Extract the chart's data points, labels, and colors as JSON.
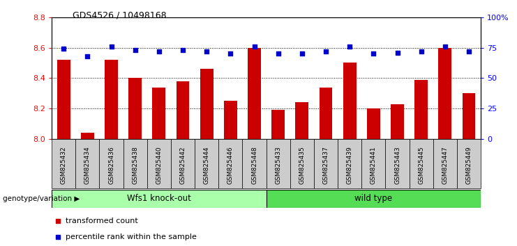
{
  "title": "GDS4526 / 10498168",
  "categories": [
    "GSM825432",
    "GSM825434",
    "GSM825436",
    "GSM825438",
    "GSM825440",
    "GSM825442",
    "GSM825444",
    "GSM825446",
    "GSM825448",
    "GSM825433",
    "GSM825435",
    "GSM825437",
    "GSM825439",
    "GSM825441",
    "GSM825443",
    "GSM825445",
    "GSM825447",
    "GSM825449"
  ],
  "bar_values": [
    8.52,
    8.04,
    8.52,
    8.4,
    8.34,
    8.38,
    8.46,
    8.25,
    8.6,
    8.19,
    8.24,
    8.34,
    8.5,
    8.2,
    8.23,
    8.39,
    8.6,
    8.3
  ],
  "dot_values": [
    74,
    68,
    76,
    73,
    72,
    73,
    72,
    70,
    76,
    70,
    70,
    72,
    76,
    70,
    71,
    72,
    76,
    72
  ],
  "ylim": [
    8.0,
    8.8
  ],
  "y2lim": [
    0,
    100
  ],
  "yticks": [
    8.0,
    8.2,
    8.4,
    8.6,
    8.8
  ],
  "y2ticks": [
    0,
    25,
    50,
    75,
    100
  ],
  "y2ticklabels": [
    "0",
    "25",
    "50",
    "75",
    "100%"
  ],
  "bar_color": "#cc0000",
  "dot_color": "#0000cc",
  "group1_label": "Wfs1 knock-out",
  "group2_label": "wild type",
  "group1_color": "#aaffaa",
  "group2_color": "#55dd55",
  "group1_count": 9,
  "group2_count": 9,
  "legend_bar_label": "transformed count",
  "legend_dot_label": "percentile rank within the sample",
  "genotype_label": "genotype/variation",
  "tick_bg_color": "#cccccc"
}
